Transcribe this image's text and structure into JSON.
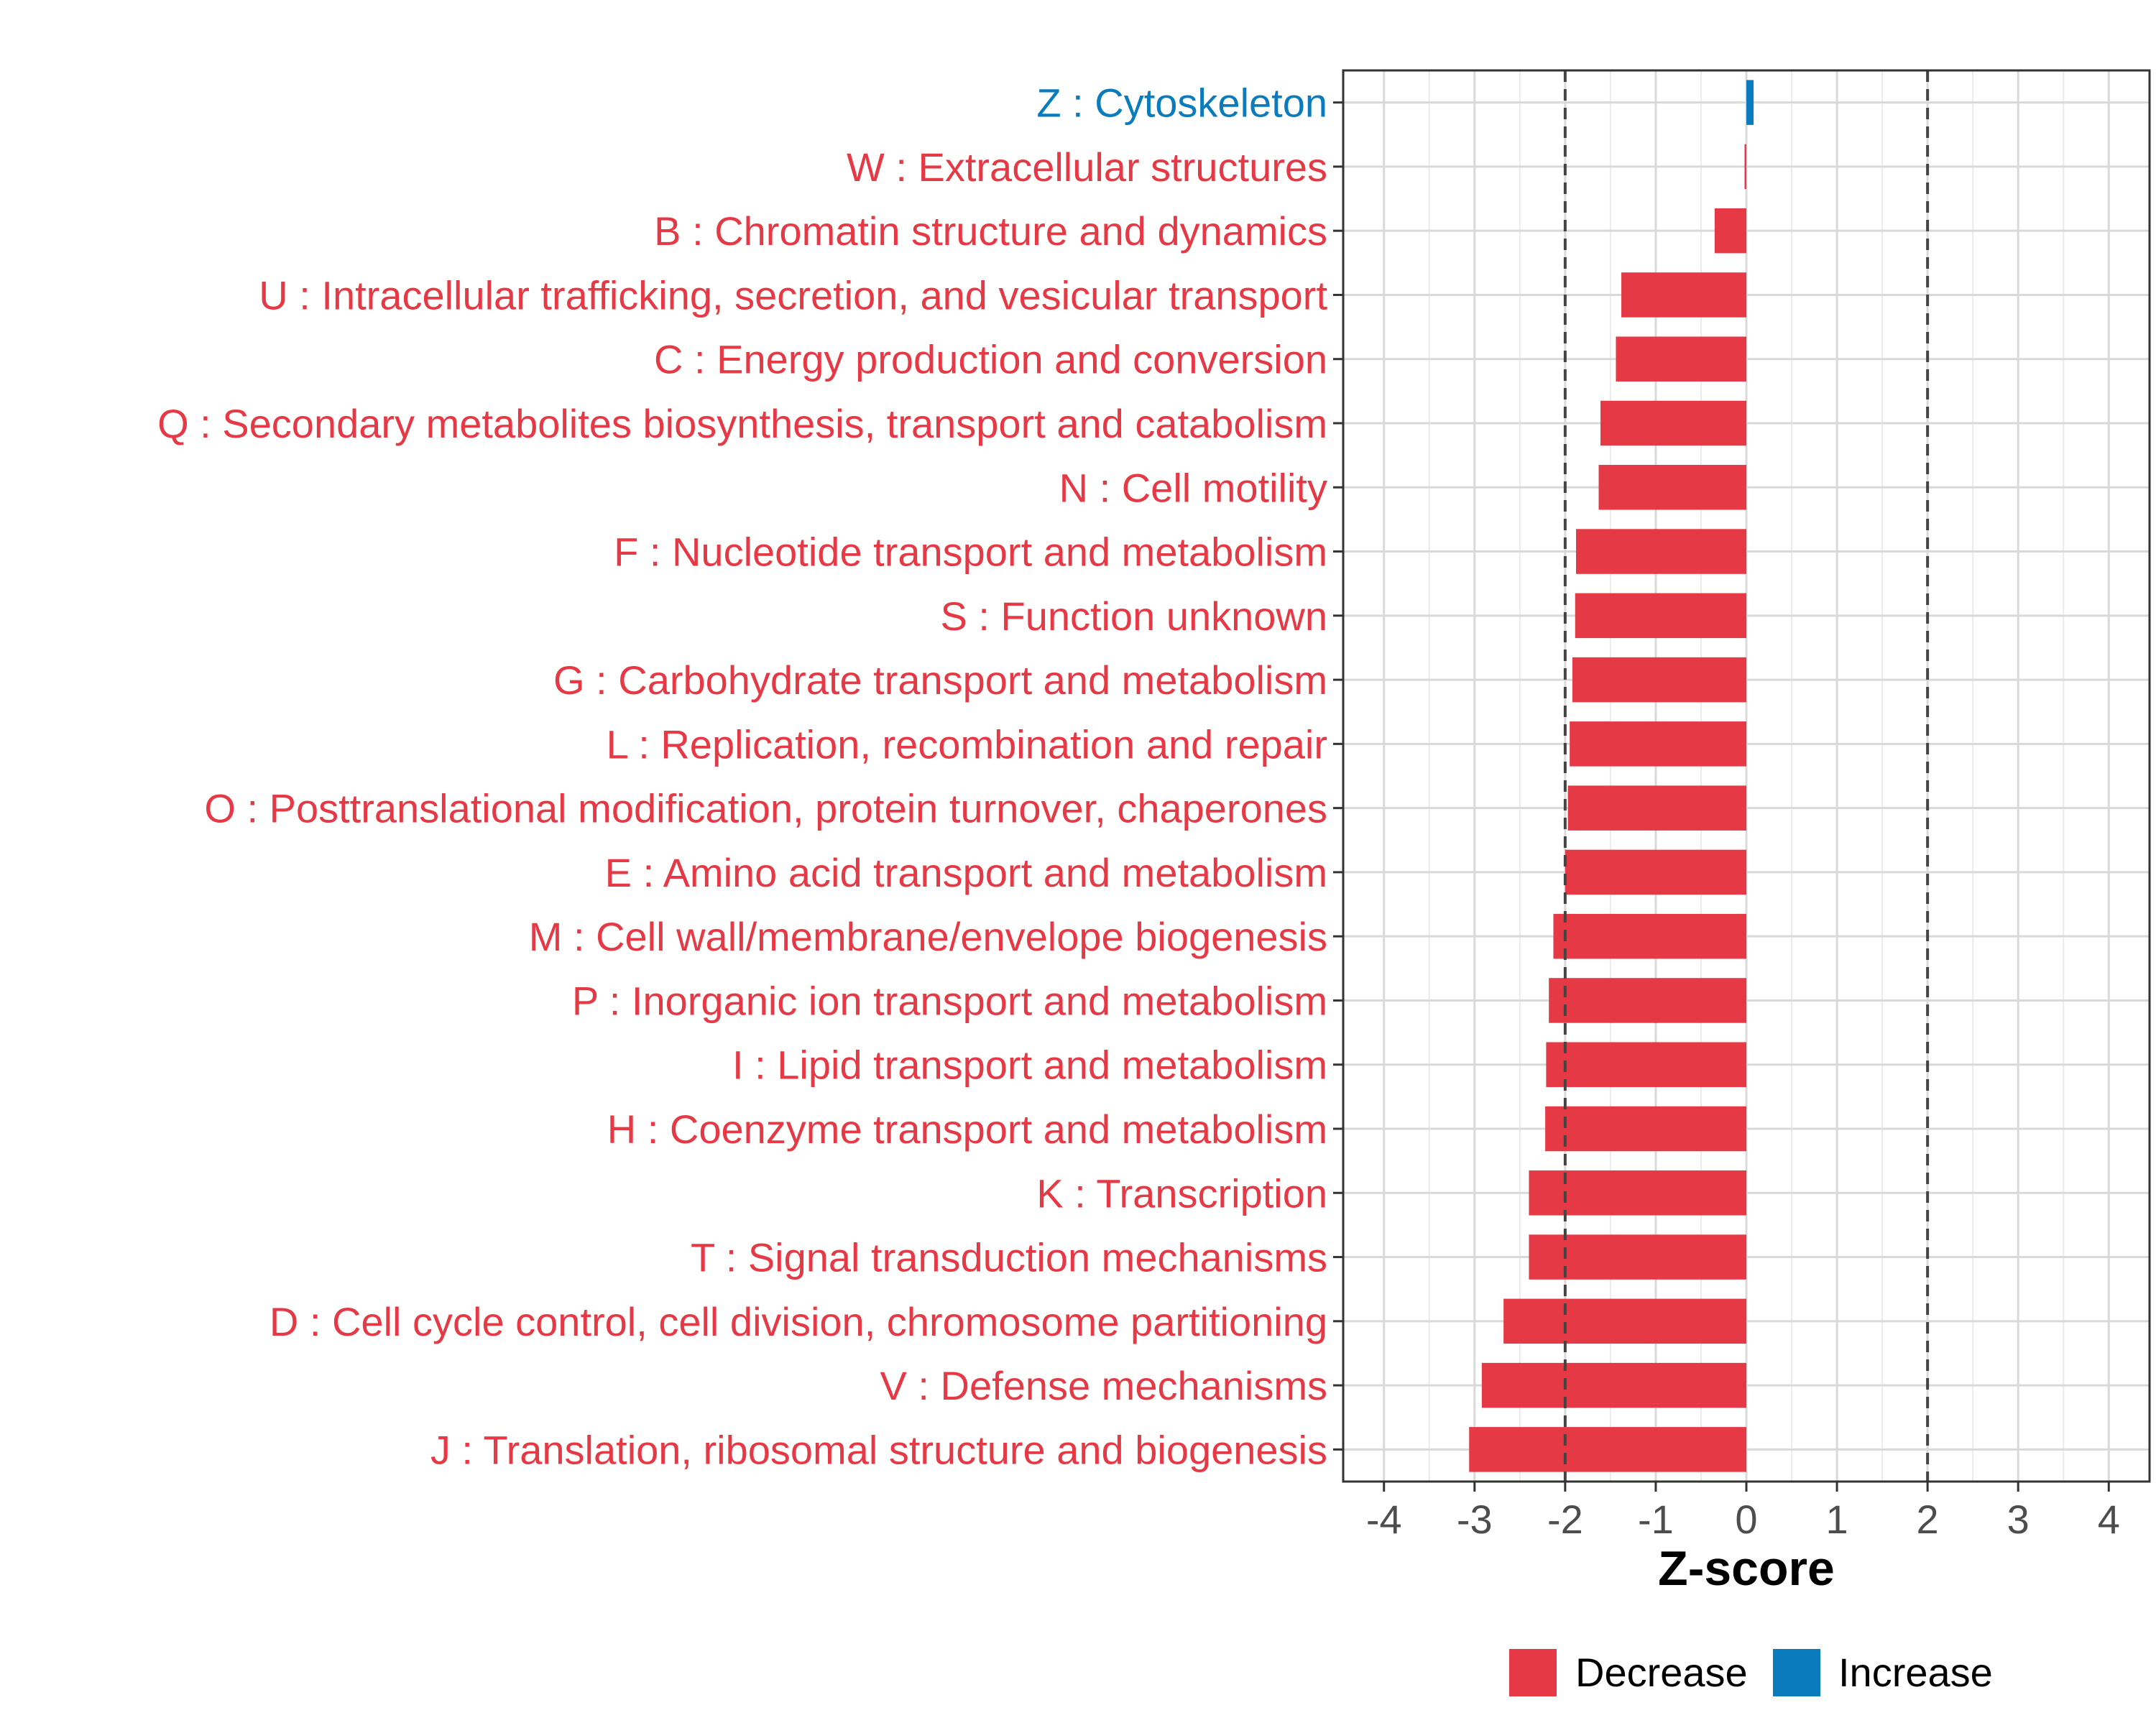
{
  "chart_data": {
    "type": "bar",
    "orientation": "horizontal",
    "xlabel": "Z-score",
    "xlim": [
      -4.45,
      4.45
    ],
    "xticks": [
      -4,
      -3,
      -2,
      -1,
      0,
      1,
      2,
      3,
      4
    ],
    "xtick_labels": [
      "-4",
      "-3",
      "-2",
      "-1",
      "0",
      "1",
      "2",
      "3",
      "4"
    ],
    "reference_lines": [
      -2,
      2
    ],
    "grid": true,
    "legend_position": "bottom",
    "colors": {
      "Decrease": "#E63946",
      "Increase": "#0A7BBD"
    },
    "legend": [
      {
        "label": "Decrease",
        "color": "#E63946"
      },
      {
        "label": "Increase",
        "color": "#0A7BBD"
      }
    ],
    "categories": [
      "Z : Cytoskeleton",
      "W : Extracellular structures",
      "B : Chromatin structure and dynamics",
      "U : Intracellular trafficking, secretion, and vesicular transport",
      "C : Energy production and conversion",
      "Q : Secondary metabolites biosynthesis, transport and catabolism",
      "N : Cell motility",
      "F : Nucleotide transport and metabolism",
      "S : Function unknown",
      "G : Carbohydrate transport and metabolism",
      "L : Replication, recombination and repair",
      "O : Posttranslational modification, protein turnover, chaperones",
      "E : Amino acid transport and metabolism",
      "M : Cell wall/membrane/envelope biogenesis",
      "P : Inorganic ion transport and metabolism",
      "I : Lipid transport and metabolism",
      "H : Coenzyme transport and metabolism",
      "K : Transcription",
      "T : Signal transduction mechanisms",
      "D : Cell cycle control, cell division, chromosome partitioning",
      "V : Defense mechanisms",
      "J : Translation, ribosomal structure and biogenesis"
    ],
    "values": [
      0.08,
      -0.02,
      -0.35,
      -1.38,
      -1.44,
      -1.61,
      -1.63,
      -1.88,
      -1.89,
      -1.92,
      -1.95,
      -1.97,
      -2.0,
      -2.13,
      -2.18,
      -2.21,
      -2.22,
      -2.4,
      -2.4,
      -2.68,
      -2.92,
      -3.06
    ],
    "groups": [
      "Increase",
      "Decrease",
      "Decrease",
      "Decrease",
      "Decrease",
      "Decrease",
      "Decrease",
      "Decrease",
      "Decrease",
      "Decrease",
      "Decrease",
      "Decrease",
      "Decrease",
      "Decrease",
      "Decrease",
      "Decrease",
      "Decrease",
      "Decrease",
      "Decrease",
      "Decrease",
      "Decrease",
      "Decrease"
    ]
  }
}
